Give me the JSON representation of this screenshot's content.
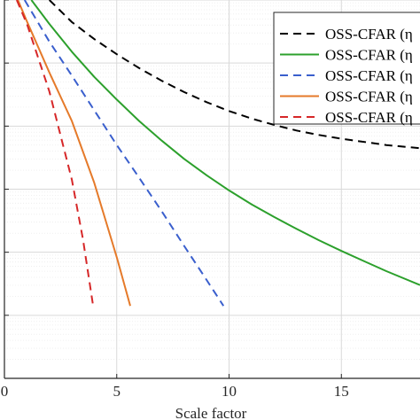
{
  "chart_data": {
    "type": "line",
    "title": "",
    "xlabel": "Scale factor",
    "ylabel": "",
    "xlim": [
      0,
      18.5
    ],
    "ylim_log10": [
      -6,
      0
    ],
    "xticks": [
      0,
      5,
      10,
      15
    ],
    "xtick_labels": [
      "0",
      "5",
      "10",
      "15"
    ],
    "yscale": "log",
    "grid": true,
    "minor_grid": true,
    "legend_position": "top-right",
    "series": [
      {
        "name": "OSS-CFAR (η",
        "color": "#000000",
        "dash": "dashed",
        "x": [
          2,
          3,
          4,
          5,
          6,
          7,
          8,
          9,
          10,
          11,
          12,
          13,
          14,
          15,
          16,
          17,
          18.5
        ],
        "log10_y": [
          0.0,
          -0.35,
          -0.62,
          -0.86,
          -1.08,
          -1.28,
          -1.46,
          -1.62,
          -1.76,
          -1.88,
          -1.98,
          -2.07,
          -2.14,
          -2.2,
          -2.25,
          -2.3,
          -2.35
        ]
      },
      {
        "name": "OSS-CFAR (η",
        "color": "#2ca02c",
        "dash": "solid",
        "x": [
          1.2,
          2,
          3,
          4,
          5,
          6,
          7,
          8,
          9,
          10,
          11,
          12,
          13,
          14,
          15,
          16,
          17,
          18.5
        ],
        "log10_y": [
          0.0,
          -0.38,
          -0.82,
          -1.22,
          -1.58,
          -1.92,
          -2.23,
          -2.52,
          -2.78,
          -3.02,
          -3.24,
          -3.44,
          -3.63,
          -3.81,
          -3.98,
          -4.14,
          -4.3,
          -4.52
        ]
      },
      {
        "name": "OSS-CFAR (η",
        "color": "#3a5fcd",
        "dash": "dashed",
        "x": [
          0.9,
          2,
          3,
          4,
          5,
          6,
          7,
          8,
          9,
          9.75
        ],
        "log10_y": [
          0.0,
          -0.66,
          -1.2,
          -1.75,
          -2.3,
          -2.82,
          -3.35,
          -3.9,
          -4.44,
          -4.85
        ]
      },
      {
        "name": "OSS-CFAR (η",
        "color": "#e57a2a",
        "dash": "solid",
        "x": [
          0.6,
          1,
          2,
          3,
          4,
          5,
          5.6
        ],
        "log10_y": [
          0.0,
          -0.34,
          -1.15,
          -1.92,
          -2.9,
          -4.08,
          -4.85
        ]
      },
      {
        "name": "OSS-CFAR (η",
        "color": "#d62728",
        "dash": "dashed",
        "x": [
          0.55,
          1,
          2,
          3,
          3.5,
          3.95
        ],
        "log10_y": [
          0.0,
          -0.38,
          -1.45,
          -2.85,
          -3.8,
          -4.85
        ]
      }
    ]
  }
}
